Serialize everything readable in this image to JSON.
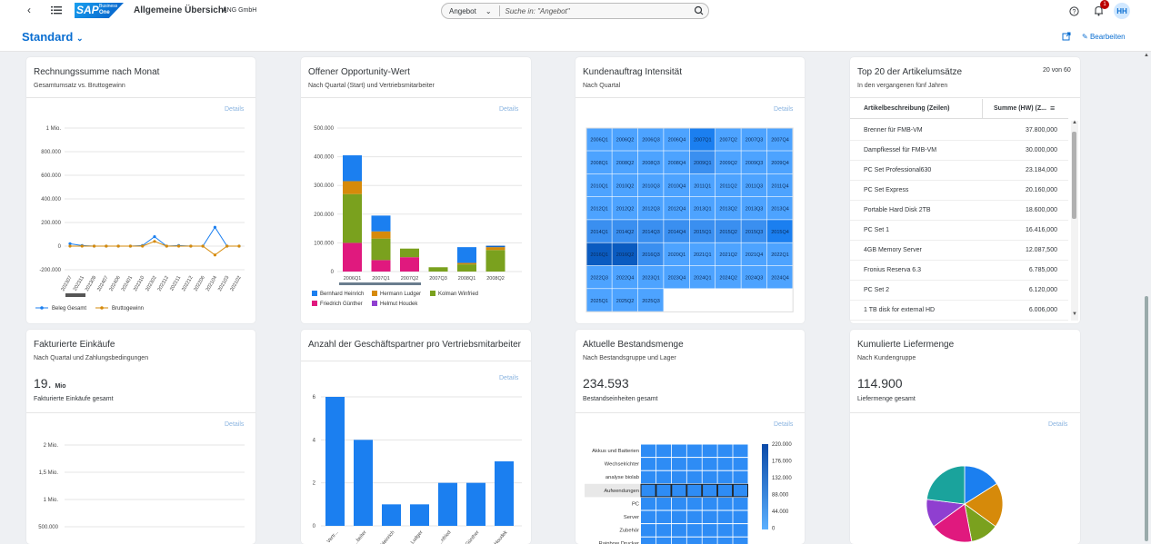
{
  "shell": {
    "app_title": "Allgemeine Übersicht",
    "company": "ANG GmbH",
    "logo_text": "SAP",
    "logo_sub": "One",
    "logo_biz": "Business",
    "search_scope": "Angebot",
    "search_placeholder": "Suche in: \"Angebot\"",
    "notif_count": "1",
    "avatar": "HH",
    "icons": [
      "back-icon",
      "menu-icon",
      "search-icon",
      "help-icon",
      "bell-icon"
    ]
  },
  "header": {
    "variant": "Standard",
    "edit_label": "Bearbeiten"
  },
  "colors": {
    "accent": "#0a6ed1",
    "blue": "#1b7ff0",
    "orange": "#d68a0a",
    "green": "#7aa11e",
    "pink": "#e0197e",
    "purple": "#8f3fd0",
    "teal": "#1aa39c"
  },
  "cards": {
    "c1": {
      "title": "Rechnungssumme nach Monat",
      "subtitle": "Gesamtumsatz vs. Bruttogewinn",
      "details": "Details",
      "legend": [
        "Beleg Gesamt",
        "Bruttogewinn"
      ]
    },
    "c2": {
      "title": "Offener Opportunity-Wert",
      "subtitle": "Nach Quartal (Start) und Vertriebsmitarbeiter",
      "details": "Details",
      "legend": [
        "Bernhard Heinrich",
        "Hermann Ludger",
        "Kolman Winfried",
        "Friedrich Günther",
        "Helmut Houdek"
      ]
    },
    "c3": {
      "title": "Kundenauftrag Intensität",
      "subtitle": "Nach Quartal",
      "details": "Details"
    },
    "c4": {
      "title": "Top 20 der Artikelumsätze",
      "subtitle": "In den vergangenen fünf Jahren",
      "count": "20 von 60",
      "col1": "Artikelbeschreibung (Zeilen)",
      "col2": "Summe (HW) (Z...",
      "rows": [
        {
          "name": "Brenner für FMB-VM",
          "value": "37.800,000"
        },
        {
          "name": "Dampfkessel für FMB-VM",
          "value": "30.000,000"
        },
        {
          "name": "PC Set Professional630",
          "value": "23.184,000"
        },
        {
          "name": "PC Set Express",
          "value": "20.160,000"
        },
        {
          "name": "Portable Hard Disk 2TB",
          "value": "18.600,000"
        },
        {
          "name": "PC Set 1",
          "value": "16.416,000"
        },
        {
          "name": "4GB Memory Server",
          "value": "12.087,500"
        },
        {
          "name": "Fronius Reserva 6.3",
          "value": "6.785,000"
        },
        {
          "name": "PC Set 2",
          "value": "6.120,000"
        },
        {
          "name": "1 TB disk for external HD",
          "value": "6.006,000"
        }
      ]
    },
    "c5": {
      "title": "Fakturierte Einkäufe",
      "subtitle": "Nach Quartal und Zahlungsbedingungen",
      "kpi": "19.",
      "kpi_unit": "Mio",
      "kpi_label": "Fakturierte Einkäufe gesamt",
      "details": "Details"
    },
    "c6": {
      "title": "Anzahl der Geschäftspartner pro Vertriebsmitarbeiter",
      "details": "Details"
    },
    "c7": {
      "title": "Aktuelle Bestandsmenge",
      "subtitle": "Nach Bestandsgruppe und Lager",
      "kpi": "234.593",
      "kpi_label": "Bestandseinheiten gesamt",
      "details": "Details"
    },
    "c8": {
      "title": "Kumulierte Liefermenge",
      "subtitle": "Nach Kundengruppe",
      "kpi": "114.900",
      "kpi_label": "Liefermenge gesamt",
      "details": "Details"
    }
  },
  "chart_data": [
    {
      "type": "line",
      "x": [
        "202307",
        "202311",
        "202308",
        "202407",
        "202406",
        "202401",
        "202310",
        "202302",
        "202312",
        "202211",
        "202212",
        "202206",
        "202104",
        "202103",
        "202102"
      ],
      "series": [
        {
          "name": "Beleg Gesamt",
          "values": [
            20000,
            5000,
            0,
            0,
            0,
            0,
            5000,
            80000,
            0,
            5000,
            0,
            0,
            160000,
            0,
            0
          ]
        },
        {
          "name": "Bruttogewinn",
          "values": [
            0,
            0,
            0,
            0,
            0,
            0,
            0,
            40000,
            0,
            0,
            0,
            0,
            -75000,
            0,
            0
          ]
        }
      ],
      "yticks": [
        "1 Mio.",
        "800.000",
        "600.000",
        "400.000",
        "200.000",
        "0",
        "-200.000"
      ],
      "ylim": [
        -200000,
        1000000
      ],
      "grid": true,
      "legend": "bottom-left"
    },
    {
      "type": "bar",
      "stacked": true,
      "categories": [
        "2006Q1",
        "2007Q1",
        "2007Q2",
        "2007Q3",
        "2008Q1",
        "2008Q2"
      ],
      "series": [
        {
          "name": "Friedrich Günther",
          "values": [
            100000,
            40000,
            50000,
            0,
            0,
            0
          ]
        },
        {
          "name": "Kolman Winfried",
          "values": [
            170000,
            75000,
            30000,
            15000,
            25000,
            75000
          ]
        },
        {
          "name": "Hermann Ludger",
          "values": [
            45000,
            25000,
            0,
            0,
            5000,
            10000
          ]
        },
        {
          "name": "Bernhard Heinrich",
          "values": [
            90000,
            55000,
            0,
            0,
            55000,
            0
          ]
        },
        {
          "name": "Helmut Houdek",
          "values": [
            0,
            0,
            0,
            0,
            0,
            5000
          ]
        }
      ],
      "yticks": [
        "500.000",
        "400.000",
        "300.000",
        "200.000",
        "100.000",
        "0"
      ],
      "ylim": [
        0,
        500000
      ],
      "grid": true,
      "legend": "bottom"
    },
    {
      "type": "heatmap",
      "cells": [
        "2006Q1",
        "2006Q2",
        "2006Q3",
        "2006Q4",
        "2007Q1",
        "2007Q2",
        "2007Q3",
        "2007Q4",
        "2008Q1",
        "2008Q2",
        "2008Q3",
        "2008Q4",
        "2009Q1",
        "2009Q2",
        "2009Q3",
        "2009Q4",
        "2010Q1",
        "2010Q2",
        "2010Q3",
        "2010Q4",
        "2011Q1",
        "2011Q2",
        "2011Q3",
        "2011Q4",
        "2012Q1",
        "2012Q2",
        "2012Q3",
        "2012Q4",
        "2013Q1",
        "2013Q2",
        "2013Q3",
        "2013Q4",
        "2014Q1",
        "2014Q2",
        "2014Q3",
        "2014Q4",
        "2015Q1",
        "2015Q2",
        "2015Q3",
        "2015Q4",
        "2016Q1",
        "2016Q2",
        "2016Q3",
        "2020Q1",
        "2021Q1",
        "2021Q2",
        "2021Q4",
        "2022Q1",
        "2022Q3",
        "2022Q4",
        "2023Q1",
        "2023Q4",
        "2024Q1",
        "2024Q2",
        "2024Q3",
        "2024Q4",
        "2025Q1",
        "2025Q2",
        "2025Q3"
      ],
      "intensity": [
        1,
        1,
        1,
        1,
        3,
        1,
        1,
        1,
        1,
        1,
        1,
        1,
        2,
        1,
        1,
        1,
        1,
        1,
        1,
        1,
        1,
        1,
        1,
        1,
        1,
        1,
        1,
        1,
        1,
        1,
        1,
        1,
        2,
        2,
        2,
        2,
        2,
        2,
        2,
        3,
        4,
        4,
        2,
        1,
        1,
        1,
        1,
        1,
        1,
        1,
        1,
        1,
        1,
        1,
        1,
        1,
        1,
        1,
        1
      ]
    },
    {
      "type": "bar",
      "categories": [
        "Vertr...",
        "...beiter",
        "Heinrich",
        "Ludger",
        "...nfried",
        "Günther",
        "Houdek"
      ],
      "values": [
        6,
        4,
        1,
        1,
        2,
        2,
        3
      ],
      "yticks": [
        "6",
        "4",
        "2",
        "0"
      ],
      "ylim": [
        0,
        6
      ]
    },
    {
      "type": "heatmap",
      "rows": [
        "Akkus und Batterien",
        "Wechselrichter",
        "analyse biolab",
        "Aufwendungen",
        "PC",
        "Server",
        "Zubehör",
        "Rainbow Drucker"
      ],
      "columns": 7,
      "scale": [
        "220.000",
        "176.000",
        "132.000",
        "88.000",
        "44.000",
        "0"
      ],
      "highlight_row": "Aufwendungen"
    },
    {
      "type": "line",
      "yticks": [
        "2 Mio.",
        "1,5 Mio.",
        "1 Mio.",
        "500.000"
      ]
    },
    {
      "type": "pie",
      "values": [
        16,
        19,
        12,
        18,
        12,
        23
      ],
      "colors": [
        "#1b7ff0",
        "#d68a0a",
        "#7aa11e",
        "#e0197e",
        "#8f3fd0",
        "#1aa39c"
      ]
    }
  ]
}
